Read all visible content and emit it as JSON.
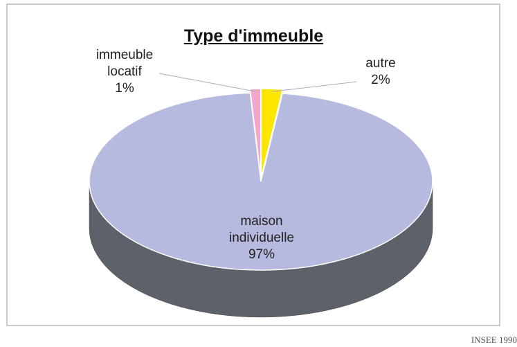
{
  "chart_data": {
    "type": "pie",
    "title": "Type d'immeuble",
    "categories": [
      "autre",
      "maison individuelle",
      "immeuble locatif"
    ],
    "values": [
      2,
      97,
      1
    ],
    "value_labels": [
      "2%",
      "97%",
      "1%"
    ],
    "colors": [
      "#ffe600",
      "#b6bade",
      "#f4a6cc"
    ],
    "note": "INSEE 1990"
  }
}
